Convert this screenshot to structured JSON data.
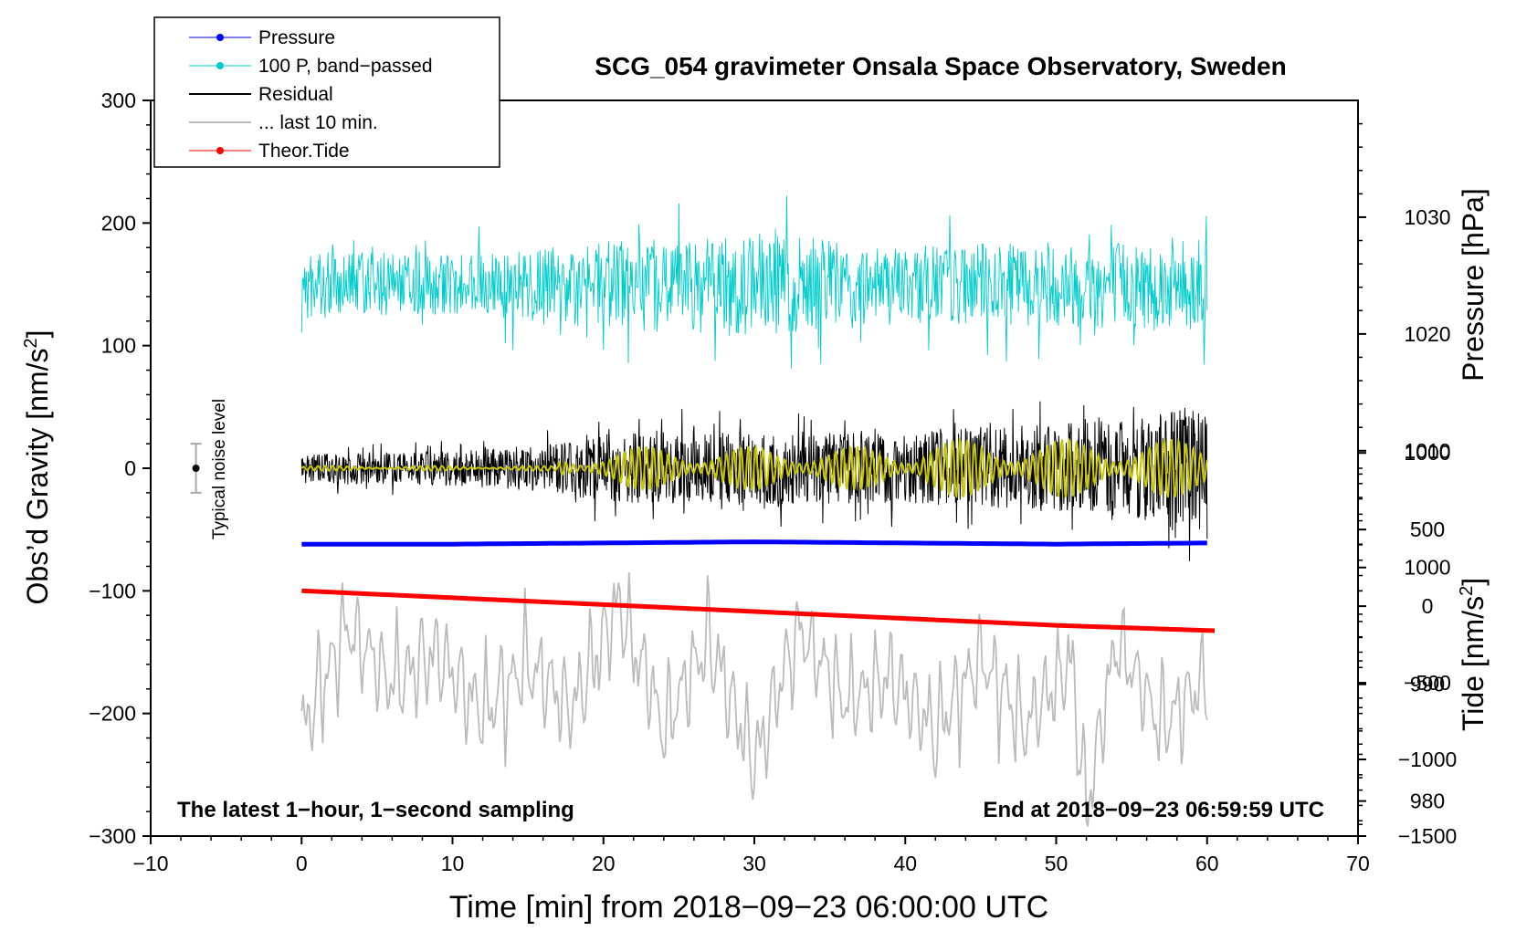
{
  "chart_data": {
    "type": "line",
    "title": "SCG_054 gravimeter Onsala Space Observatory, Sweden",
    "xlabel": "Time [min] from 2018−09−23 06:00:00 UTC",
    "ylabel_left": "Obs’d Gravity [nm/s",
    "ylabel_left_sup": "2",
    "ylabel_left_close": "]",
    "ylabel_pressure": "Pressure [hPa]",
    "ylabel_tide": "Tide [nm/s",
    "ylabel_tide_sup": "2",
    "ylabel_tide_close": "]",
    "xlim": [
      -10,
      70
    ],
    "ylim": [
      -300,
      300
    ],
    "pressure_lim": [
      977,
      1040
    ],
    "tide_lim": [
      -1500,
      3300
    ],
    "x_ticks": [
      -10,
      0,
      10,
      20,
      30,
      40,
      50,
      60,
      70
    ],
    "x_tick_labels": [
      "−10",
      "0",
      "10",
      "20",
      "30",
      "40",
      "50",
      "60",
      "70"
    ],
    "y_ticks": [
      -300,
      -200,
      -100,
      0,
      100,
      200,
      300
    ],
    "y_tick_labels": [
      "−300",
      "−200",
      "−100",
      "0",
      "100",
      "200",
      "300"
    ],
    "pressure_ticks": [
      980,
      990,
      1000,
      1010,
      1020,
      1030
    ],
    "pressure_tick_labels": [
      "980",
      "990",
      "1000",
      "1010",
      "1020",
      "1030"
    ],
    "tide_ticks": [
      -1500,
      -1000,
      -500,
      0,
      500,
      1000
    ],
    "tide_tick_labels": [
      "−1500",
      "−1000",
      "−500",
      "0",
      "500",
      "1000"
    ],
    "legend": {
      "position": "top-left",
      "entries": [
        "Pressure",
        "100 P, band−passed",
        "Residual",
        "... last 10 min.",
        "Theor.Tide"
      ]
    },
    "annotations": {
      "bottom_left": "The latest 1−hour, 1−second sampling",
      "bottom_right": "End at 2018−09−23 06:59:59 UTC",
      "noise_label": "Typical noise level"
    },
    "noise_bar": {
      "x": -7,
      "center": 0,
      "half_range": 20
    },
    "colors": {
      "pressure": "#0000ff",
      "bandpassed": "#00cccc",
      "residual": "#000000",
      "last10": "#bbbbbb",
      "tide": "#ff0000",
      "filtered_residual": "#c8c800"
    },
    "series": [
      {
        "name": "Pressure",
        "axis": "pressure",
        "x": [
          0,
          10,
          20,
          30,
          40,
          50,
          60
        ],
        "values": [
          1002.0,
          1002.0,
          1002.1,
          1002.2,
          1002.1,
          1002.0,
          1002.1
        ]
      },
      {
        "name": "Theor.Tide",
        "axis": "tide",
        "x": [
          0,
          10,
          20,
          30,
          40,
          50,
          60.5
        ],
        "values": [
          100,
          55,
          10,
          -35,
          -80,
          -125,
          -160
        ]
      },
      {
        "name": "100 P, band−passed",
        "axis": "left",
        "center": 150,
        "amplitude_envelope_x": [
          0,
          10,
          20,
          30,
          40,
          50,
          60
        ],
        "amplitude_envelope": [
          28,
          24,
          35,
          42,
          32,
          34,
          40
        ]
      },
      {
        "name": "Residual",
        "axis": "left",
        "center": 0,
        "amplitude_envelope_x": [
          0,
          10,
          17,
          20,
          30,
          40,
          45,
          50,
          55,
          58,
          60
        ],
        "amplitude_envelope": [
          12,
          14,
          20,
          28,
          30,
          28,
          34,
          36,
          40,
          52,
          45
        ]
      },
      {
        "name": "... last 10 min.",
        "axis": "left",
        "x": [
          0,
          3,
          6,
          9,
          12,
          15,
          18,
          21,
          24,
          27,
          30,
          33,
          36,
          39,
          42,
          45,
          48,
          51,
          52,
          54,
          57,
          60
        ],
        "values": [
          -235,
          -150,
          -195,
          -170,
          -220,
          -180,
          -215,
          -130,
          -230,
          -160,
          -260,
          -150,
          -210,
          -190,
          -235,
          -175,
          -230,
          -180,
          -300,
          -160,
          -230,
          -190
        ]
      }
    ]
  }
}
